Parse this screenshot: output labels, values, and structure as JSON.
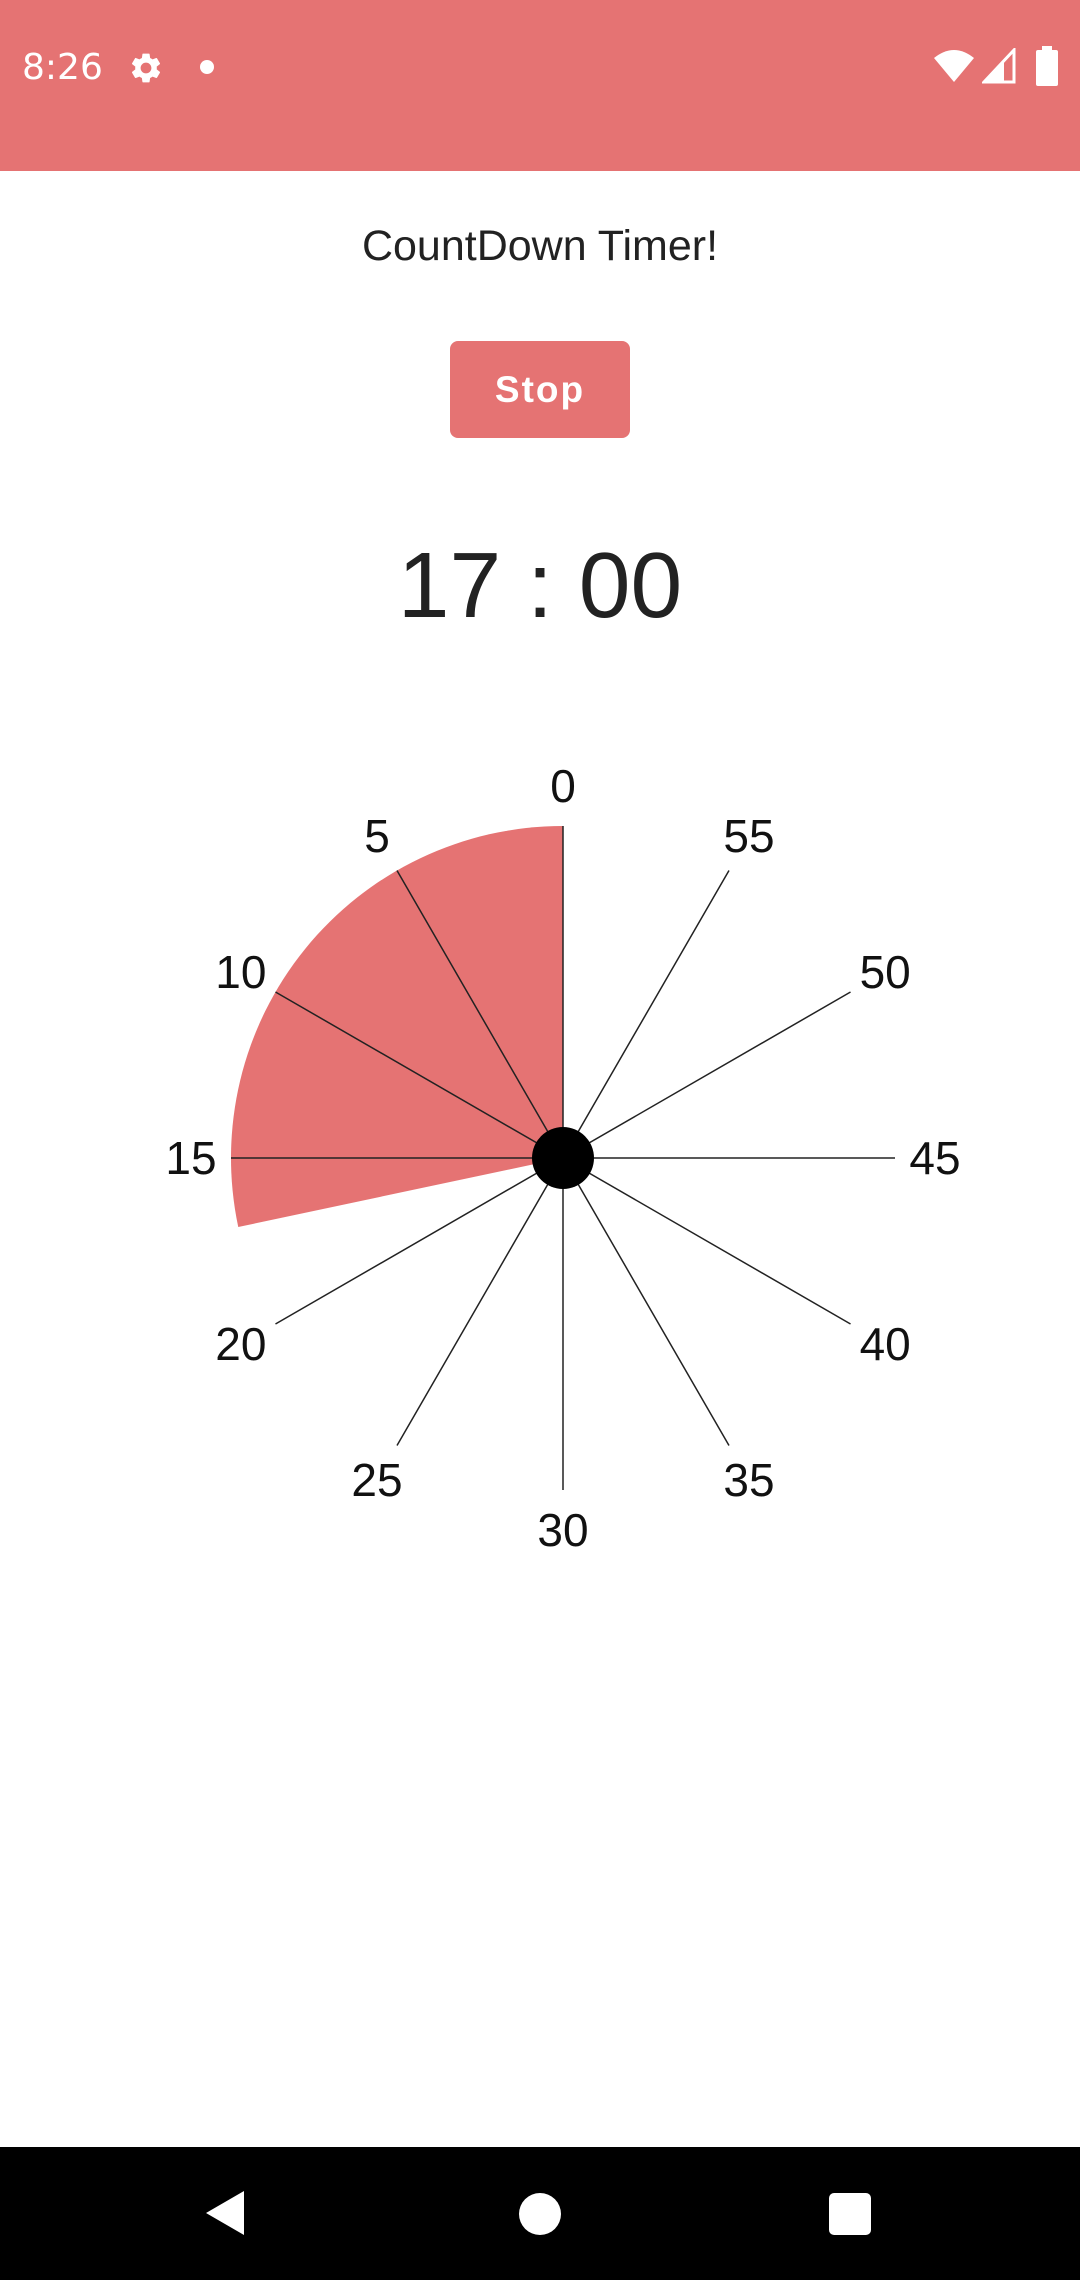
{
  "status_bar": {
    "time": "8:26",
    "background": "#e57373",
    "icons": [
      "gear-icon",
      "notification-dot-icon",
      "wifi-icon",
      "cell-signal-icon",
      "battery-icon"
    ]
  },
  "app": {
    "title": "CountDown Timer!",
    "stop_label": "Stop",
    "timer_text": "17 : 00",
    "accent_color": "#e57373"
  },
  "dial": {
    "minute_labels": [
      "0",
      "5",
      "10",
      "15",
      "20",
      "25",
      "30",
      "35",
      "40",
      "45",
      "50",
      "55"
    ],
    "remaining_minutes": 17,
    "fill_color": "#e57373"
  },
  "nav_bar": {
    "icons": [
      "back-icon",
      "home-icon",
      "recents-icon"
    ]
  }
}
